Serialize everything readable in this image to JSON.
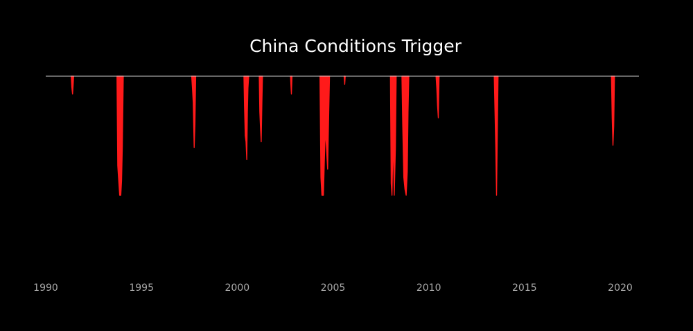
{
  "chart_data": {
    "type": "area",
    "title": "China Conditions Trigger",
    "xlabel": "",
    "ylabel": "",
    "xlim": [
      1990,
      2021
    ],
    "ylim": [
      -1,
      0
    ],
    "x_ticks": [
      "1990",
      "1995",
      "2000",
      "2005",
      "2010",
      "2015",
      "2020"
    ],
    "grid": false,
    "legend": "none",
    "baseline_color": "#cccccc",
    "series": [
      {
        "color": "#ff1a1a",
        "episodes": [
          [
            [
              1991.33,
              0
            ],
            [
              1991.36,
              -0.09
            ],
            [
              1991.4,
              -0.15
            ],
            [
              1991.43,
              -0.08
            ],
            [
              1991.46,
              0
            ]
          ],
          [
            [
              1993.72,
              0
            ],
            [
              1993.76,
              -0.75
            ],
            [
              1993.8,
              -0.85
            ],
            [
              1993.86,
              -1.0
            ],
            [
              1993.92,
              -1.0
            ],
            [
              1993.96,
              -0.88
            ],
            [
              1994.0,
              -0.6
            ],
            [
              1994.05,
              0
            ]
          ],
          [
            [
              1997.62,
              0
            ],
            [
              1997.66,
              -0.1
            ],
            [
              1997.7,
              -0.22
            ],
            [
              1997.75,
              -0.6
            ],
            [
              1997.79,
              -0.4
            ],
            [
              1997.83,
              0
            ]
          ],
          [
            [
              2000.35,
              0
            ],
            [
              2000.38,
              -0.25
            ],
            [
              2000.42,
              -0.5
            ],
            [
              2000.46,
              -0.55
            ],
            [
              2000.5,
              -0.7
            ],
            [
              2000.53,
              -0.3
            ],
            [
              2000.56,
              -0.1
            ],
            [
              2000.6,
              0
            ]
          ],
          [
            [
              2001.15,
              0
            ],
            [
              2001.18,
              -0.3
            ],
            [
              2001.22,
              -0.45
            ],
            [
              2001.25,
              -0.55
            ],
            [
              2001.29,
              -0.2
            ],
            [
              2001.32,
              0
            ]
          ],
          [
            [
              2002.78,
              0
            ],
            [
              2002.81,
              -0.1
            ],
            [
              2002.83,
              -0.15
            ],
            [
              2002.86,
              0
            ]
          ],
          [
            [
              2004.32,
              0
            ],
            [
              2004.37,
              -0.85
            ],
            [
              2004.42,
              -1.0
            ],
            [
              2004.5,
              -1.0
            ],
            [
              2004.55,
              -0.7
            ],
            [
              2004.6,
              -0.45
            ],
            [
              2004.66,
              -0.6
            ],
            [
              2004.72,
              -0.78
            ],
            [
              2004.78,
              -0.3
            ],
            [
              2004.82,
              0
            ]
          ],
          [
            [
              2005.58,
              0
            ],
            [
              2005.61,
              -0.07
            ],
            [
              2005.64,
              0
            ]
          ],
          [
            [
              2008.0,
              0
            ],
            [
              2008.04,
              -0.9
            ],
            [
              2008.08,
              -1.0
            ],
            [
              2008.14,
              -0.5
            ],
            [
              2008.2,
              -1.0
            ],
            [
              2008.26,
              -0.6
            ],
            [
              2008.3,
              0
            ]
          ],
          [
            [
              2008.6,
              0
            ],
            [
              2008.64,
              -0.4
            ],
            [
              2008.7,
              -0.85
            ],
            [
              2008.76,
              -0.95
            ],
            [
              2008.82,
              -1.0
            ],
            [
              2008.88,
              -0.8
            ],
            [
              2008.92,
              -0.3
            ],
            [
              2008.96,
              0
            ]
          ],
          [
            [
              2010.38,
              0
            ],
            [
              2010.42,
              -0.1
            ],
            [
              2010.46,
              -0.25
            ],
            [
              2010.5,
              -0.35
            ],
            [
              2010.54,
              0
            ]
          ],
          [
            [
              2013.42,
              0
            ],
            [
              2013.46,
              -0.3
            ],
            [
              2013.5,
              -0.6
            ],
            [
              2013.54,
              -1.0
            ],
            [
              2013.58,
              -0.5
            ],
            [
              2013.62,
              0
            ]
          ],
          [
            [
              2019.54,
              0
            ],
            [
              2019.58,
              -0.35
            ],
            [
              2019.62,
              -0.58
            ],
            [
              2019.66,
              -0.42
            ],
            [
              2019.7,
              0
            ]
          ]
        ]
      }
    ]
  }
}
